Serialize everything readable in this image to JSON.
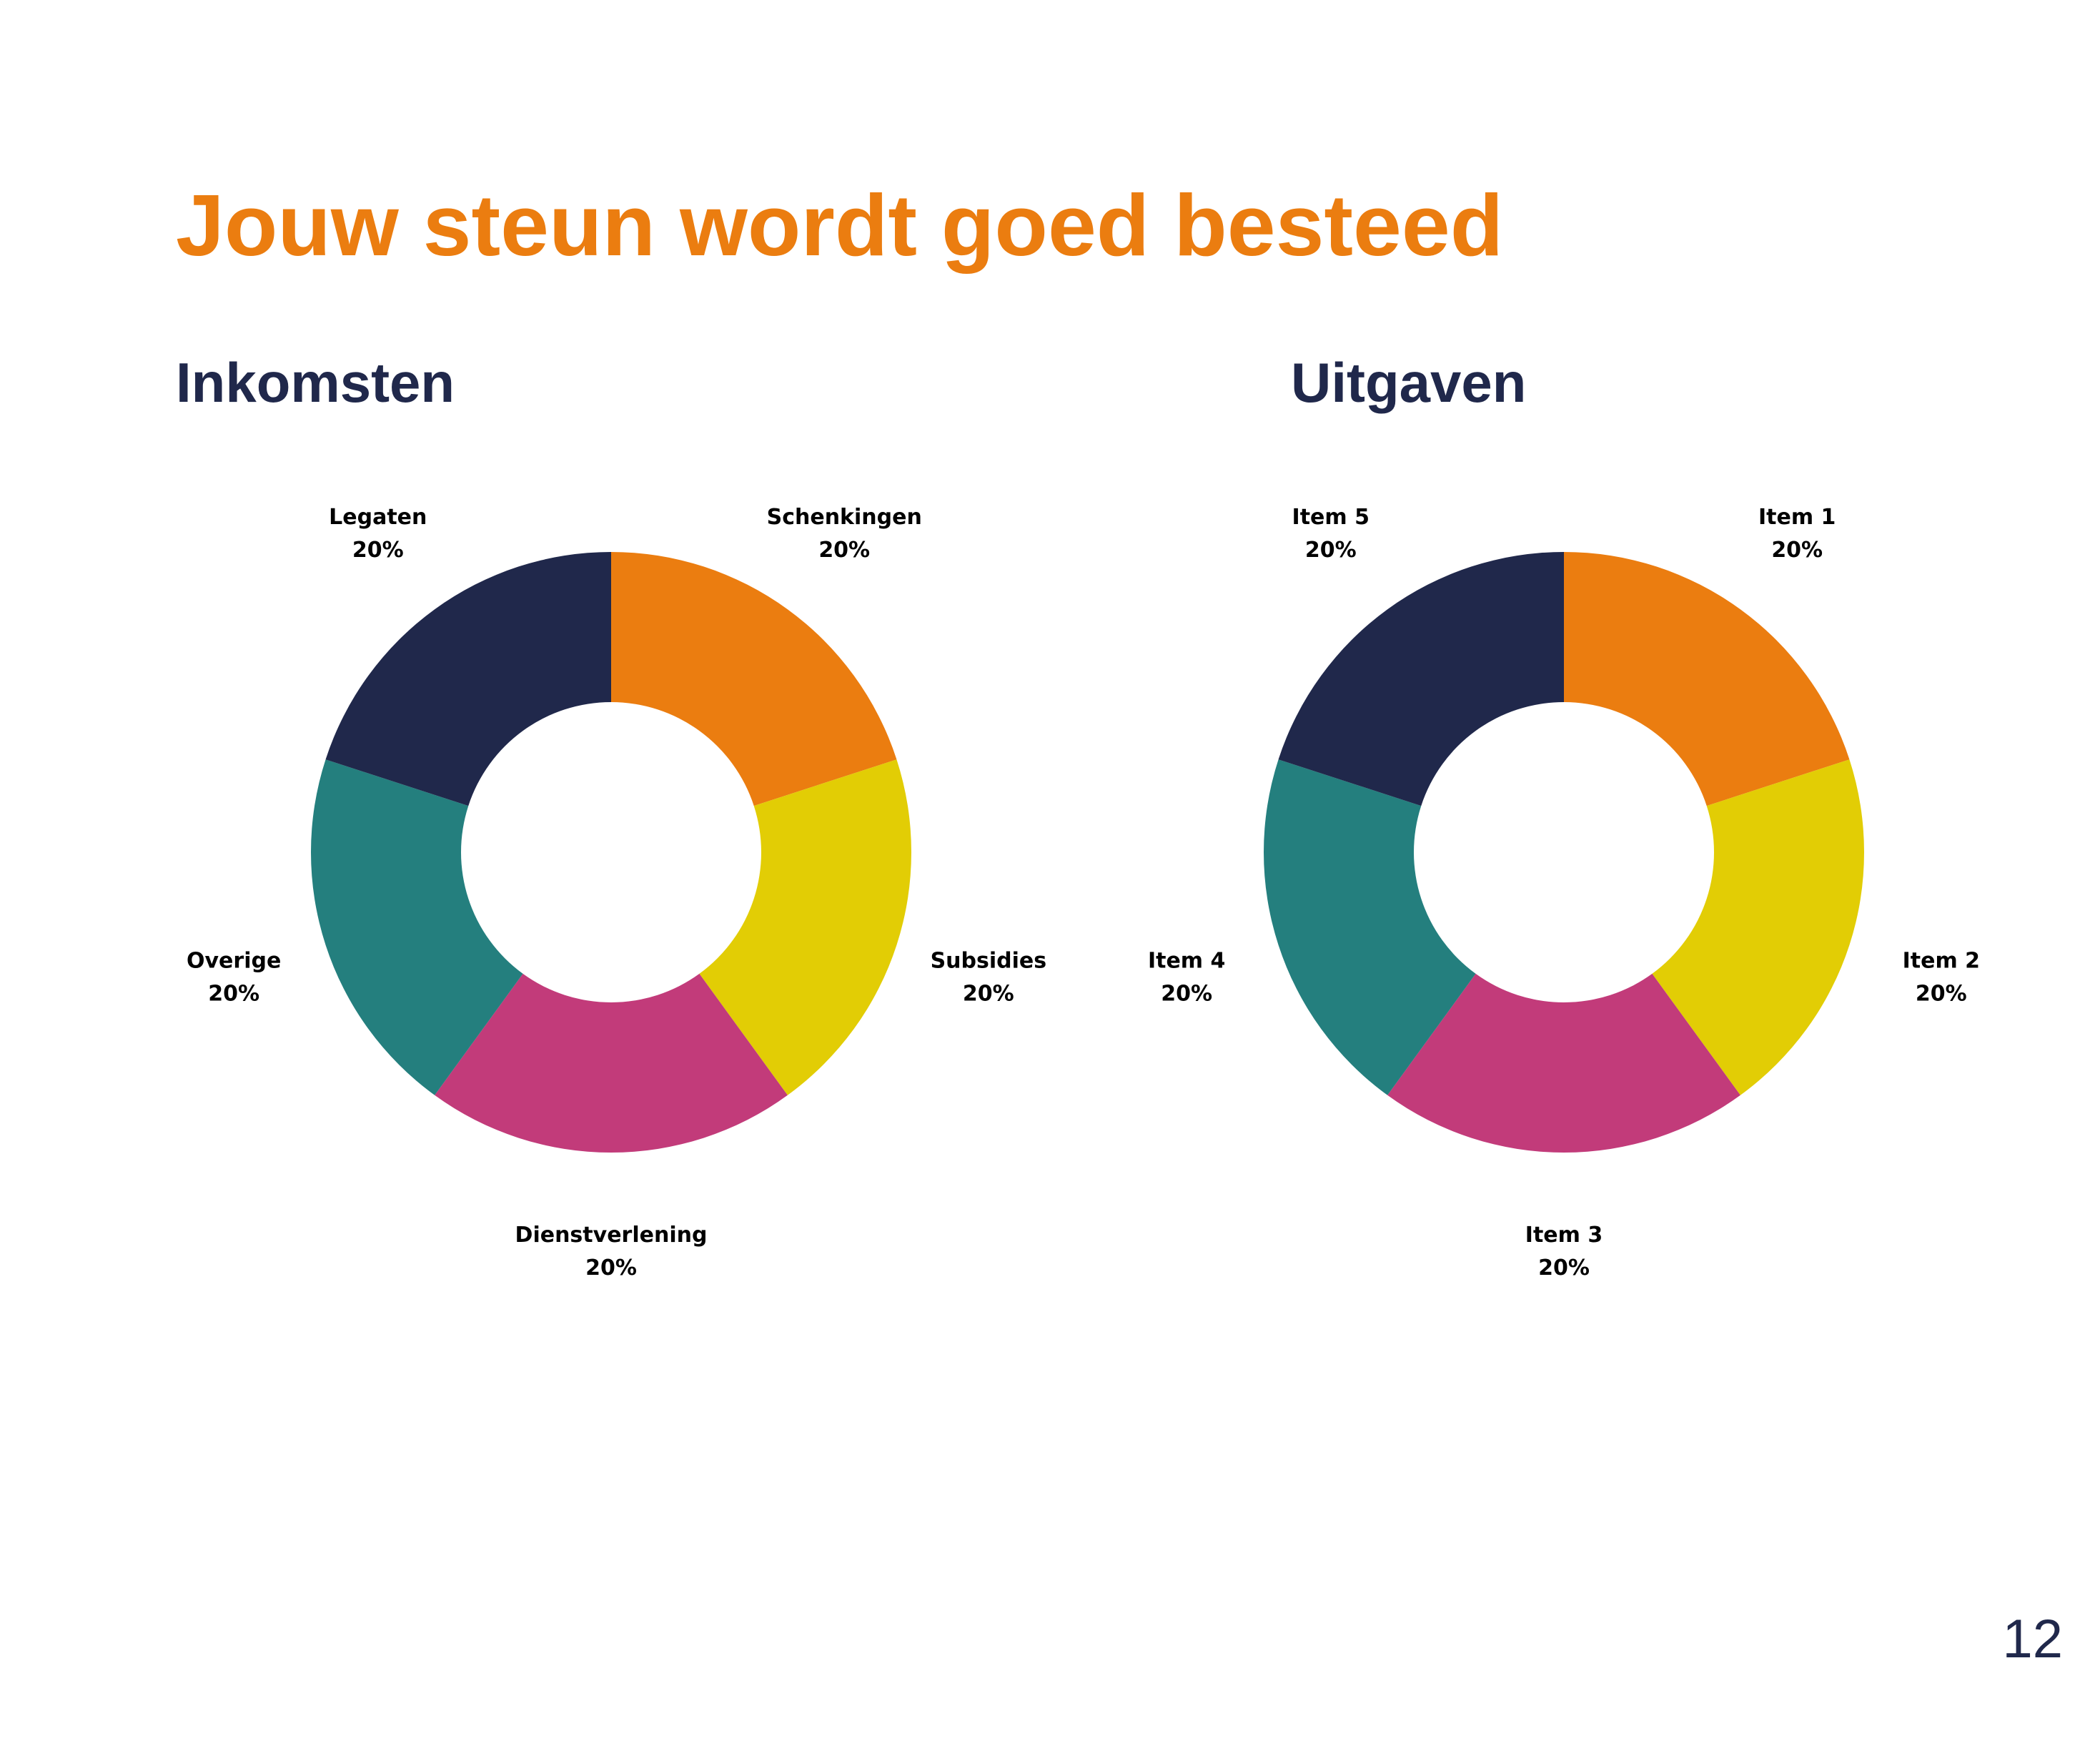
{
  "page": {
    "title": "Jouw steun wordt goed besteed",
    "page_number": "12"
  },
  "colors": {
    "title": "#eb7d10",
    "heading": "#20284b",
    "slices": [
      "#eb7d10",
      "#e2cd05",
      "#c23b7a",
      "#247f7e",
      "#20284b"
    ]
  },
  "chart_data": [
    {
      "type": "pie",
      "title": "Inkomsten",
      "donut": true,
      "categories": [
        "Schenkingen",
        "Subsidies",
        "Dienstverlening",
        "Overige",
        "Legaten"
      ],
      "values": [
        20,
        20,
        20,
        20,
        20
      ],
      "value_labels": [
        "20%",
        "20%",
        "20%",
        "20%",
        "20%"
      ],
      "colors": [
        "#eb7d10",
        "#e2cd05",
        "#c23b7a",
        "#247f7e",
        "#20284b"
      ]
    },
    {
      "type": "pie",
      "title": "Uitgaven",
      "donut": true,
      "categories": [
        "Item 1",
        "Item 2",
        "Item 3",
        "Item 4",
        "Item 5"
      ],
      "values": [
        20,
        20,
        20,
        20,
        20
      ],
      "value_labels": [
        "20%",
        "20%",
        "20%",
        "20%",
        "20%"
      ],
      "colors": [
        "#eb7d10",
        "#e2cd05",
        "#c23b7a",
        "#247f7e",
        "#20284b"
      ]
    }
  ]
}
